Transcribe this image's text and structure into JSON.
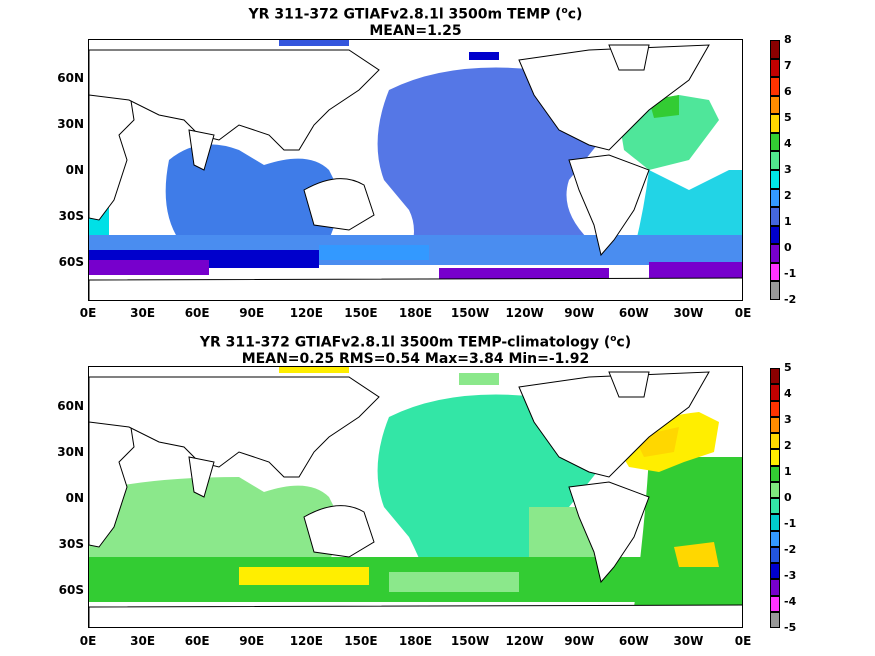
{
  "panel1": {
    "title_line1": "YR 311-372 GTIAFv2.8.1l 3500m TEMP (",
    "title_sup": "o",
    "title_line1_end": "c)",
    "title_line2": "MEAN=1.25",
    "colorbar": {
      "labels": [
        "8",
        "7",
        "6",
        "5",
        "4",
        "3",
        "2",
        "1",
        "0",
        "-1",
        "-2"
      ],
      "colors": [
        "#8b0000",
        "#c00000",
        "#ff3300",
        "#ff8c00",
        "#ffd700",
        "#33cc33",
        "#50e68c",
        "#00e6e6",
        "#3399ff",
        "#4466dd",
        "#0000cc",
        "#7700cc",
        "#ff33ff",
        "#999999"
      ]
    }
  },
  "panel2": {
    "title_line1": "YR 311-372 GTIAFv2.8.1l 3500m TEMP-climatology (",
    "title_sup": "o",
    "title_line1_end": "c)",
    "title_line2": "MEAN=0.25   RMS=0.54   Max=3.84   Min=-1.92",
    "colorbar": {
      "labels": [
        "5",
        "4",
        "3",
        "2",
        "1",
        "0",
        "-1",
        "-2",
        "-3",
        "-4",
        "-5"
      ],
      "colors": [
        "#8b0000",
        "#c00000",
        "#ff3300",
        "#ff8c00",
        "#ffd700",
        "#ffee00",
        "#33cc33",
        "#7ee67e",
        "#33e6a6",
        "#00cccc",
        "#3399ff",
        "#2255dd",
        "#0000cc",
        "#7700cc",
        "#ff33ff",
        "#999999"
      ]
    }
  },
  "axes": {
    "lat_labels": [
      "60N",
      "30N",
      "0N",
      "30S",
      "60S"
    ],
    "lon_labels": [
      "0E",
      "30E",
      "60E",
      "90E",
      "120E",
      "150E",
      "180E",
      "150W",
      "120W",
      "90W",
      "60W",
      "30W",
      "0E"
    ]
  }
}
